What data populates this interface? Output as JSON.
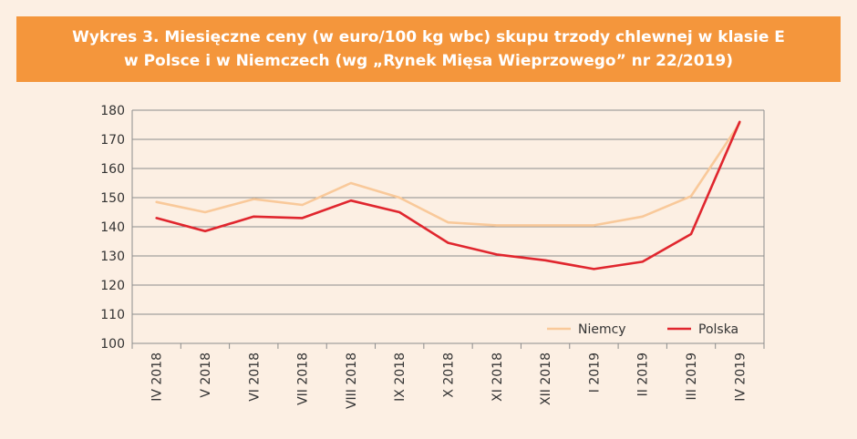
{
  "title": {
    "line1": "Wykres 3. Miesięczne ceny (w euro/100 kg wbc) skupu trzody chlewnej w klasie E",
    "line2": "w Polsce i w Niemczech (wg „Rynek Mięsa Wieprzowego” nr 22/2019)"
  },
  "colors": {
    "background": "#fcefe3",
    "title_bg": "#f4963c",
    "niemcy": "#f9c99a",
    "polska": "#e0262e",
    "grid": "#8c8c8c"
  },
  "chart_data": {
    "type": "line",
    "categories": [
      "IV 2018",
      "V 2018",
      "VI 2018",
      "VII 2018",
      "VIII 2018",
      "IX 2018",
      "X 2018",
      "XI 2018",
      "XII 2018",
      "I 2019",
      "II 2019",
      "III 2019",
      "IV 2019"
    ],
    "series": [
      {
        "name": "Niemcy",
        "values": [
          148.5,
          145,
          149.5,
          147.5,
          155,
          150,
          141.5,
          140.5,
          140.5,
          140.5,
          143.5,
          150.5,
          175.5
        ]
      },
      {
        "name": "Polska",
        "values": [
          143,
          138.5,
          143.5,
          143,
          149,
          145,
          134.5,
          130.5,
          128.5,
          125.5,
          128,
          137.5,
          176
        ]
      }
    ],
    "ylim": [
      100,
      180
    ],
    "yticks": [
      "100",
      "110",
      "120",
      "130",
      "140",
      "150",
      "160",
      "170",
      "180"
    ],
    "grid": true,
    "legend": "bottom-right"
  }
}
